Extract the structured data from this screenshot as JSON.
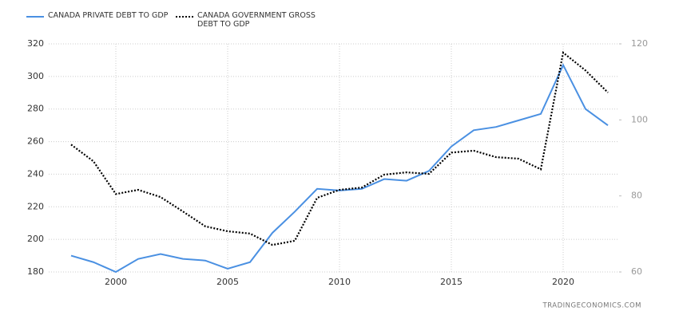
{
  "chart_data": {
    "type": "line",
    "source": "TRADINGECONOMICS.COM",
    "x": [
      1998,
      1999,
      2000,
      2001,
      2002,
      2003,
      2004,
      2005,
      2006,
      2007,
      2008,
      2009,
      2010,
      2011,
      2012,
      2013,
      2014,
      2015,
      2016,
      2017,
      2018,
      2019,
      2020,
      2021,
      2022
    ],
    "series": [
      {
        "name": "CANADA PRIVATE DEBT TO GDP",
        "color": "#4a90e2",
        "dash": "solid",
        "values": [
          190,
          186,
          180,
          188,
          191,
          188,
          187,
          182,
          186,
          204,
          217,
          231,
          230,
          231,
          237,
          236,
          242,
          257,
          267,
          269,
          273,
          277,
          307,
          280,
          270
        ]
      },
      {
        "name": "CANADA GOVERNMENT GROSS DEBT TO GDP",
        "color": "#000000",
        "dash": "dotted",
        "axis": "y2",
        "values": [
          93.5,
          89.1,
          80.5,
          81.6,
          79.7,
          75.9,
          72,
          70.7,
          70.1,
          67.1,
          68.2,
          79.5,
          81.6,
          82.2,
          85.6,
          86.2,
          85.8,
          91.4,
          91.9,
          90.2,
          89.8,
          87,
          117.7,
          113,
          107.2
        ]
      }
    ],
    "xlim": [
      1997,
      2022.5
    ],
    "xticks": [
      2000,
      2005,
      2010,
      2015,
      2020
    ],
    "ylim": [
      180,
      320
    ],
    "yticks": [
      180,
      200,
      220,
      240,
      260,
      280,
      300,
      320
    ],
    "y2lim": [
      60,
      120
    ],
    "y2ticks": [
      60,
      80,
      100,
      120
    ],
    "grid": true
  }
}
